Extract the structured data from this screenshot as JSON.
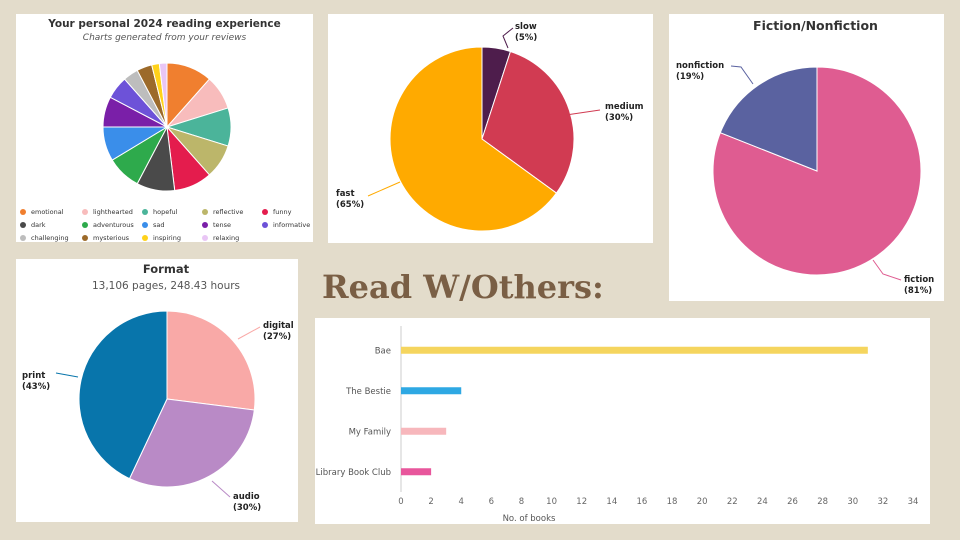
{
  "heading": "Read W/Others:",
  "chart_data": [
    {
      "id": "moods",
      "type": "pie",
      "title": "Your personal 2024 reading experience",
      "subtitle": "Charts generated from your reviews",
      "slices": [
        {
          "label": "emotional",
          "value": 12,
          "color": "#f07f2f"
        },
        {
          "label": "lighthearted",
          "value": 9,
          "color": "#f8bcbc"
        },
        {
          "label": "hopeful",
          "value": 10,
          "color": "#4bb49a"
        },
        {
          "label": "reflective",
          "value": 9,
          "color": "#bcb66a"
        },
        {
          "label": "funny",
          "value": 10,
          "color": "#e41c4d"
        },
        {
          "label": "dark",
          "value": 10,
          "color": "#4a4a4a"
        },
        {
          "label": "adventurous",
          "value": 9,
          "color": "#2eaa4c"
        },
        {
          "label": "sad",
          "value": 9,
          "color": "#3a8eea"
        },
        {
          "label": "tense",
          "value": 8,
          "color": "#7a1fa8"
        },
        {
          "label": "informative",
          "value": 6,
          "color": "#6d52d8"
        },
        {
          "label": "challenging",
          "value": 4,
          "color": "#bdbdbd"
        },
        {
          "label": "mysterious",
          "value": 4,
          "color": "#9c6a2a"
        },
        {
          "label": "inspiring",
          "value": 2,
          "color": "#ffd21a"
        },
        {
          "label": "relaxing",
          "value": 2,
          "color": "#e9c6f5"
        }
      ]
    },
    {
      "id": "pace",
      "type": "pie",
      "slices": [
        {
          "label": "slow",
          "pct": "(5%)",
          "value": 5,
          "color": "#4e1d4c"
        },
        {
          "label": "medium",
          "pct": "(30%)",
          "value": 30,
          "color": "#d13b52"
        },
        {
          "label": "fast",
          "pct": "(65%)",
          "value": 65,
          "color": "#ffaa00"
        }
      ]
    },
    {
      "id": "fiction",
      "type": "pie",
      "title": "Fiction/Nonfiction",
      "slices": [
        {
          "label": "fiction",
          "pct": "(81%)",
          "value": 81,
          "color": "#df5c91"
        },
        {
          "label": "nonfiction",
          "pct": "(19%)",
          "value": 19,
          "color": "#5a62a0"
        }
      ]
    },
    {
      "id": "format",
      "type": "pie",
      "title": "Format",
      "subtitle": "13,106 pages, 248.43 hours",
      "slices": [
        {
          "label": "digital",
          "pct": "(27%)",
          "value": 27,
          "color": "#f9a9a7"
        },
        {
          "label": "audio",
          "pct": "(30%)",
          "value": 30,
          "color": "#b98ac6"
        },
        {
          "label": "print",
          "pct": "(43%)",
          "value": 43,
          "color": "#0875ab"
        }
      ]
    },
    {
      "id": "read-with",
      "type": "bar",
      "orientation": "horizontal",
      "categories": [
        "Bae",
        "The Bestie",
        "My Family",
        "Library Book Club"
      ],
      "values": [
        31,
        4,
        3,
        2
      ],
      "colors": [
        "#f5d55e",
        "#2ea8e3",
        "#f7b7bc",
        "#e8569c"
      ],
      "xlabel": "No. of books",
      "xlim": [
        0,
        34
      ],
      "xticks": [
        0,
        2,
        4,
        6,
        8,
        10,
        12,
        14,
        16,
        18,
        20,
        22,
        24,
        26,
        28,
        30,
        32,
        34
      ],
      "grid": false
    }
  ]
}
